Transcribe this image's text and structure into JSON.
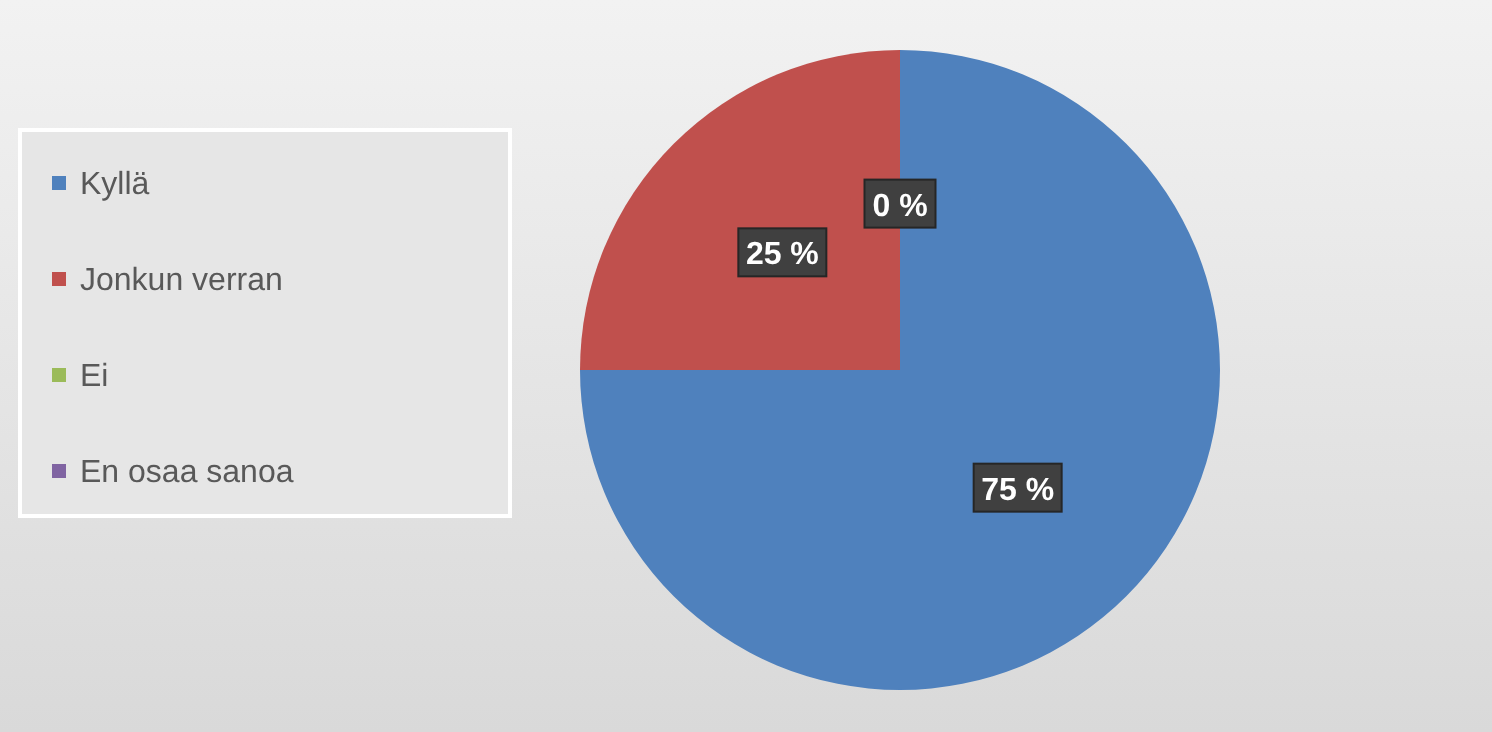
{
  "chart_data": {
    "type": "pie",
    "categories": [
      "Kyllä",
      "Jonkun verran",
      "Ei",
      "En osaa sanoa"
    ],
    "values": [
      75,
      25,
      0,
      0
    ],
    "colors": [
      "#4f81bd",
      "#c0504d",
      "#9bbb59",
      "#8064a2"
    ],
    "value_labels": [
      "75 %",
      "25 %",
      "0 %",
      null
    ],
    "legend": "left"
  }
}
